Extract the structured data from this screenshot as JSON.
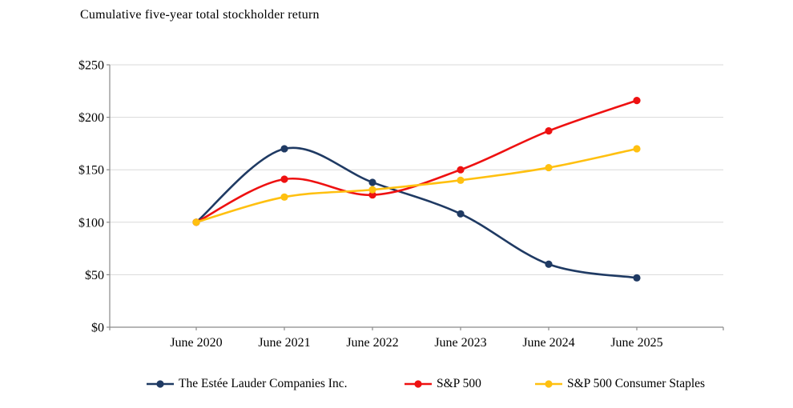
{
  "title": "Cumulative five-year total stockholder return",
  "chart_data": {
    "type": "line",
    "smoothed": true,
    "title": "Cumulative five-year total stockholder return",
    "categories": [
      "June 2020",
      "June 2021",
      "June 2022",
      "June 2023",
      "June 2024",
      "June 2025"
    ],
    "series": [
      {
        "name": "The Estée Lauder Companies Inc.",
        "color": "#1f3a63",
        "values": [
          100,
          170,
          138,
          108,
          60,
          47
        ]
      },
      {
        "name": "S&P 500",
        "color": "#ee1111",
        "values": [
          100,
          141,
          126,
          150,
          187,
          216
        ]
      },
      {
        "name": "S&P 500 Consumer Staples",
        "color": "#ffc010",
        "values": [
          100,
          124,
          131,
          140,
          152,
          170
        ]
      }
    ],
    "xlabel": "",
    "ylabel": "",
    "ylim": [
      0,
      250
    ],
    "y_tick_step": 50,
    "y_tick_labels": [
      "$0",
      "$50",
      "$100",
      "$150",
      "$200",
      "$250"
    ],
    "grid": true,
    "legend_position": "bottom"
  },
  "colors": {
    "gridline": "#d9d9d9",
    "axis": "#8a8a8a",
    "text": "#000000",
    "background": "#ffffff"
  }
}
